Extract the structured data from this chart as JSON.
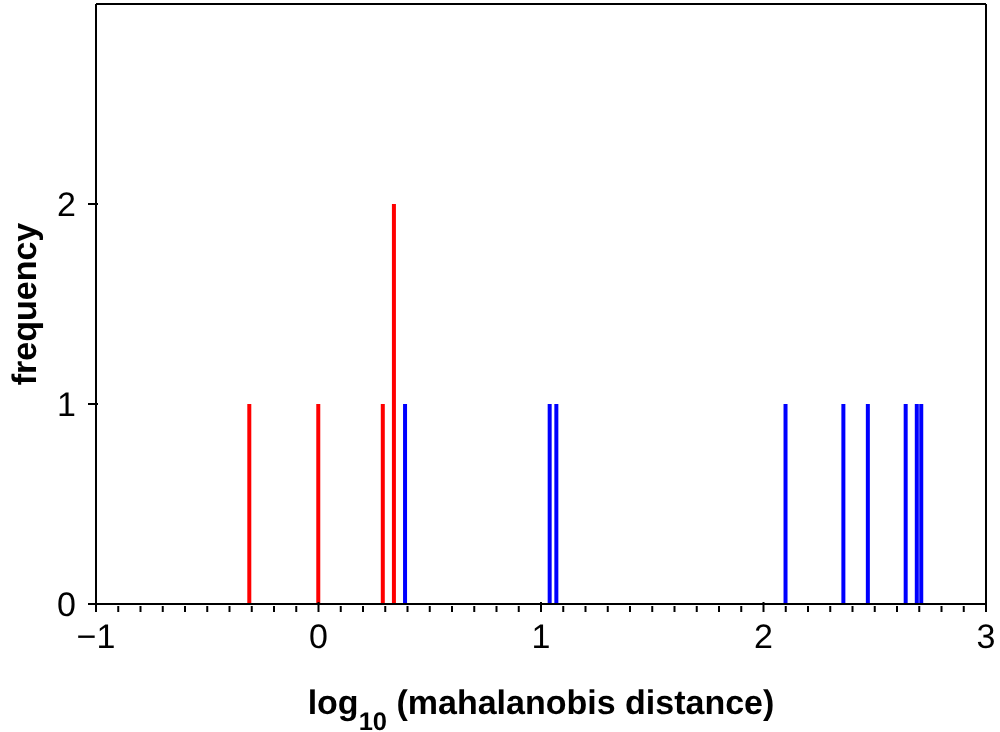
{
  "chart_data": {
    "type": "bar",
    "xlabel": "log$_{10}$ (mahalanobis distance)",
    "ylabel": "frequency",
    "series": [
      {
        "color": "#ff0000",
        "x": [
          -0.31,
          0.0,
          0.29,
          0.34
        ],
        "values": [
          1,
          1,
          1,
          2
        ]
      },
      {
        "color": "#0000ff",
        "x": [
          0.39,
          1.04,
          1.07,
          2.1,
          2.36,
          2.47,
          2.64,
          2.69,
          2.71
        ],
        "values": [
          1,
          1,
          1,
          1,
          1,
          1,
          1,
          1,
          1
        ]
      }
    ],
    "xlim": [
      -1,
      3
    ],
    "xticks": [
      -1,
      {
        "value": -0.9,
        "label": null
      },
      {
        "value": -0.8,
        "label": null
      },
      {
        "value": -0.7,
        "label": null
      },
      {
        "value": -0.6,
        "label": null
      },
      {
        "value": -0.5,
        "label": null
      },
      {
        "value": -0.4,
        "label": null
      },
      {
        "value": -0.3,
        "label": null
      },
      {
        "value": -0.2,
        "label": null
      },
      {
        "value": -0.1,
        "label": null
      },
      0,
      {
        "value": 0.1,
        "label": null
      },
      {
        "value": 0.2,
        "label": null
      },
      {
        "value": 0.3,
        "label": null
      },
      {
        "value": 0.4,
        "label": null
      },
      {
        "value": 0.5,
        "label": null
      },
      {
        "value": 0.6,
        "label": null
      },
      {
        "value": 0.7,
        "label": null
      },
      {
        "value": 0.8,
        "label": null
      },
      {
        "value": 0.9,
        "label": null
      },
      1,
      {
        "value": 1.1,
        "label": null
      },
      {
        "value": 1.2,
        "label": null
      },
      {
        "value": 1.3,
        "label": null
      },
      {
        "value": 1.4,
        "label": null
      },
      {
        "value": 1.5,
        "label": null
      },
      {
        "value": 1.6,
        "label": null
      },
      {
        "value": 1.7,
        "label": null
      },
      {
        "value": 1.8,
        "label": null
      },
      {
        "value": 1.9,
        "label": null
      },
      2,
      {
        "value": 2.1,
        "label": null
      },
      {
        "value": 2.2,
        "label": null
      },
      {
        "value": 2.3,
        "label": null
      },
      {
        "value": 2.4,
        "label": null
      },
      {
        "value": 2.5,
        "label": null
      },
      {
        "value": 2.6,
        "label": null
      },
      {
        "value": 2.7,
        "label": null
      },
      {
        "value": 2.8,
        "label": null
      },
      {
        "value": 2.9,
        "label": null
      },
      3
    ],
    "ylim": [
      0,
      3
    ],
    "yticks": [
      0,
      1,
      2
    ],
    "grid": false,
    "legend": false
  }
}
